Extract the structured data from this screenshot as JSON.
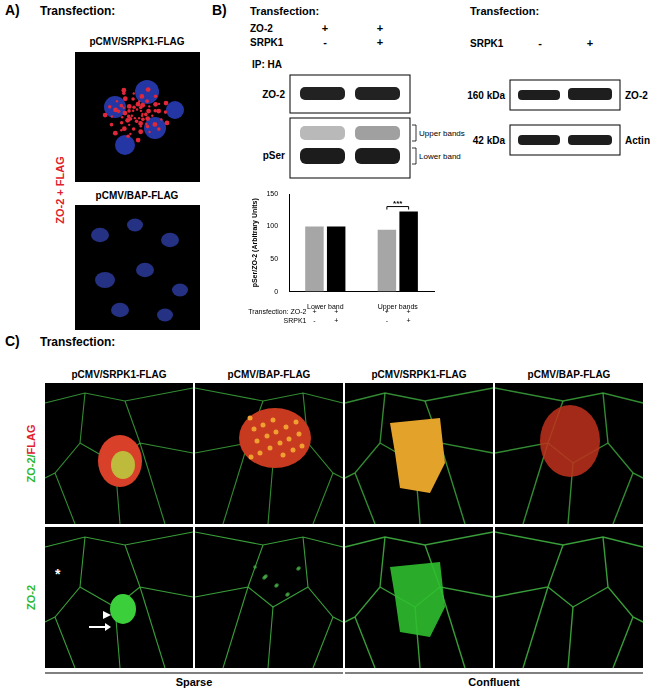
{
  "panel_a": {
    "label": "A)",
    "heading": "Transfection:",
    "images": [
      "pCMV/SRPK1-FLAG",
      "pCMV/BAP-FLAG"
    ],
    "side_label": "ZO-2 + FLAG"
  },
  "panel_b": {
    "label": "B)",
    "heading": "Transfection:",
    "rows": [
      {
        "name": "ZO-2",
        "marks": [
          "+",
          "+"
        ]
      },
      {
        "name": "SRPK1",
        "marks": [
          "-",
          "+"
        ]
      }
    ],
    "ip": "IP: HA",
    "blots": [
      "ZO-2",
      "pSer"
    ],
    "band_labels": [
      "Upper bands",
      "Lower band"
    ],
    "chart_rows": [
      {
        "name": "Transfection: ZO-2",
        "marks": [
          "+",
          "+",
          "+",
          "+"
        ]
      },
      {
        "name": "SRPK1",
        "marks": [
          "-",
          "+",
          "-",
          "+"
        ]
      }
    ],
    "western": {
      "heading": "Transfection:",
      "row": {
        "name": "SRPK1",
        "marks": [
          "-",
          "+"
        ]
      },
      "blots": [
        {
          "size": "160 kDa",
          "name": "ZO-2"
        },
        {
          "size": "42 kDa",
          "name": "Actin"
        }
      ]
    }
  },
  "chart_data": {
    "type": "bar",
    "categories": [
      "Lower band",
      "Upper bands"
    ],
    "series": [
      {
        "color": "#a6a6a6",
        "values": [
          100,
          95
        ]
      },
      {
        "color": "#000000",
        "values": [
          100,
          123
        ]
      }
    ],
    "y_label": "pSer/ZO-2 (Arbitrary Units)",
    "ylim": [
      0,
      150
    ],
    "yticks": [
      0,
      50,
      100,
      150
    ],
    "grid": false,
    "annotations": [
      {
        "text": "***",
        "category": "Upper bands"
      }
    ]
  },
  "panel_c": {
    "label": "C)",
    "heading": "Transfection:",
    "columns": [
      "pCMV/SRPK1-FLAG",
      "pCMV/BAP-FLAG",
      "pCMV/SRPK1-FLAG",
      "pCMV/BAP-FLAG"
    ],
    "row_labels": [
      [
        "ZO-2/",
        "FLAG"
      ],
      [
        "ZO-2"
      ]
    ],
    "markers": [
      "*"
    ],
    "groups": [
      "Sparse",
      "Confluent"
    ]
  }
}
